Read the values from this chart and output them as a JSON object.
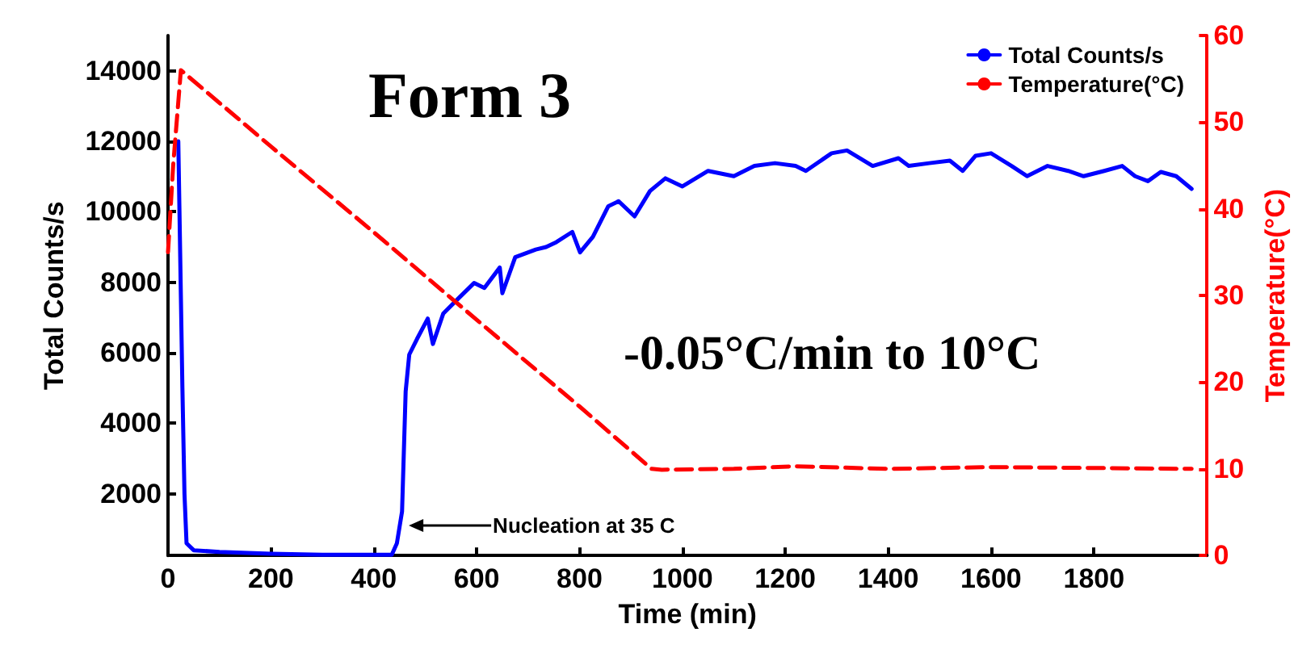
{
  "chart_data": {
    "type": "line",
    "title": "Form 3",
    "xlabel": "Time (min)",
    "ylabel": "Total Counts/s",
    "y2label": "Temperature(°C)",
    "annotations": [
      "-0.05°C/min to 10°C",
      {
        "text": "Nucleation at 35 C",
        "x": 465,
        "y": 1100
      }
    ],
    "xlim": [
      0,
      2020
    ],
    "xticks": [
      0,
      200,
      400,
      600,
      800,
      1000,
      1200,
      1400,
      1600,
      1800
    ],
    "ylim": [
      250,
      15000
    ],
    "yticks": [
      2000,
      4000,
      6000,
      8000,
      10000,
      12000,
      14000
    ],
    "y2lim": [
      0,
      60
    ],
    "y2ticks": [
      0,
      10,
      20,
      30,
      40,
      50,
      60
    ],
    "grid": false,
    "legend": "top right",
    "marker": "none",
    "series": [
      {
        "name": "Total Counts/s",
        "color": "#0000ff",
        "line_style": "solid",
        "x": [
          20,
          28,
          32,
          36,
          50,
          100,
          200,
          300,
          435,
          445,
          455,
          462,
          469,
          484,
          505,
          515,
          535,
          565,
          595,
          615,
          645,
          650,
          675,
          715,
          735,
          755,
          786,
          801,
          826,
          856,
          876,
          907,
          937,
          967,
          1000,
          1050,
          1100,
          1140,
          1180,
          1220,
          1240,
          1290,
          1320,
          1370,
          1420,
          1440,
          1480,
          1520,
          1545,
          1570,
          1600,
          1640,
          1670,
          1710,
          1750,
          1780,
          1820,
          1855,
          1880,
          1905,
          1930,
          1960,
          1990
        ],
        "values": [
          12000,
          5000,
          2000,
          600,
          400,
          350,
          300,
          270,
          270,
          600,
          1500,
          4900,
          5950,
          6390,
          6970,
          6250,
          7110,
          7550,
          7980,
          7840,
          8420,
          7690,
          8710,
          8930,
          9000,
          9140,
          9430,
          8850,
          9290,
          10160,
          10300,
          9870,
          10590,
          10950,
          10720,
          11160,
          11010,
          11300,
          11380,
          11300,
          11160,
          11660,
          11740,
          11300,
          11520,
          11300,
          11380,
          11450,
          11160,
          11590,
          11660,
          11300,
          11010,
          11300,
          11160,
          11010,
          11160,
          11300,
          11010,
          10870,
          11130,
          11010,
          10650
        ]
      },
      {
        "name": "Temperature(°C)",
        "color": "#ff0000",
        "line_style": "dashed",
        "axis": "y2",
        "x": [
          0,
          10,
          25,
          200,
          400,
          600,
          800,
          940,
          960,
          1100,
          1220,
          1400,
          1600,
          1800,
          1990
        ],
        "values": [
          35,
          45,
          56,
          47.2,
          37.3,
          27.2,
          17.2,
          10,
          9.9,
          10,
          10.3,
          10,
          10.2,
          10.1,
          10
        ]
      }
    ]
  }
}
